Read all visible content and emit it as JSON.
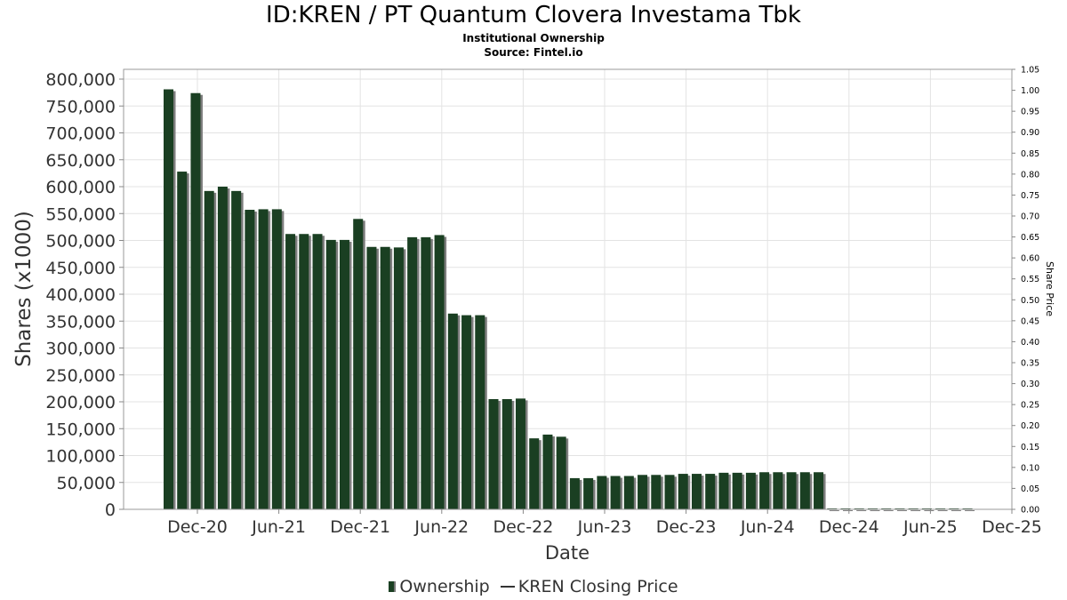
{
  "chart_data": {
    "type": "bar",
    "title": "ID:KREN / PT Quantum Clovera Investama Tbk",
    "subtitle": [
      "Institutional Ownership",
      "Source: Fintel.io"
    ],
    "xlabel": "Date",
    "ylabel": "Shares (x1000)",
    "y2label": "Share Price",
    "ylim": [
      0,
      800000
    ],
    "y2lim": [
      0,
      1.05
    ],
    "yticks": [
      "0",
      "50,000",
      "100,000",
      "150,000",
      "200,000",
      "250,000",
      "300,000",
      "350,000",
      "400,000",
      "450,000",
      "500,000",
      "550,000",
      "600,000",
      "650,000",
      "700,000",
      "750,000",
      "800,000"
    ],
    "y2ticks": [
      "0.00",
      "0.05",
      "0.10",
      "0.15",
      "0.20",
      "0.25",
      "0.30",
      "0.35",
      "0.40",
      "0.45",
      "0.50",
      "0.55",
      "0.60",
      "0.65",
      "0.70",
      "0.75",
      "0.80",
      "0.85",
      "0.90",
      "0.95",
      "1.00",
      "1.05"
    ],
    "xticks": [
      "Dec-20",
      "Jun-21",
      "Dec-21",
      "Jun-22",
      "Dec-22",
      "Jun-23",
      "Dec-23",
      "Jun-24",
      "Dec-24",
      "Jun-25",
      "Dec-25"
    ],
    "grid": true,
    "legend_position": "bottom",
    "series": [
      {
        "name": "Ownership",
        "color": "#1a3f22",
        "values": [
          781000,
          628000,
          774000,
          592000,
          600000,
          592000,
          557000,
          558000,
          558000,
          512000,
          512000,
          512000,
          501000,
          501000,
          540000,
          488000,
          488000,
          487000,
          506000,
          506000,
          510000,
          364000,
          361000,
          361000,
          205000,
          205000,
          206000,
          132000,
          139000,
          135000,
          58000,
          58000,
          62000,
          62000,
          62000,
          64000,
          64000,
          64000,
          66000,
          66000,
          66000,
          68000,
          68000,
          68000,
          69000,
          69000,
          69000,
          69000,
          69000,
          500,
          500,
          500,
          500,
          500,
          500,
          500,
          500,
          500,
          500,
          500
        ]
      },
      {
        "name": "KREN Closing Price",
        "color": "#333333",
        "values": []
      }
    ]
  }
}
